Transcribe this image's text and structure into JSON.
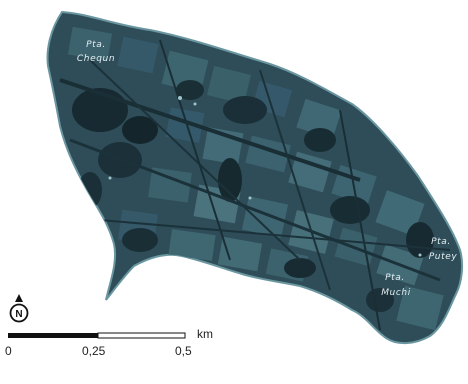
{
  "map": {
    "places": [
      {
        "id": "chequn",
        "line1": "Pta.",
        "line2": "Chequn"
      },
      {
        "id": "putey",
        "line1": "Pta.",
        "line2": "Putey"
      },
      {
        "id": "muchi",
        "line1": "Pta.",
        "line2": "Muchi"
      }
    ],
    "north_label": "N",
    "scale": {
      "unit": "km",
      "ticks": [
        "0",
        "0,25",
        "0,5"
      ]
    },
    "colors": {
      "land": "#2e4d58",
      "land_dark": "#1a2f37",
      "land_light": "#4e7b86",
      "coast": "#6a96a0",
      "label": "#e4eef2"
    }
  }
}
